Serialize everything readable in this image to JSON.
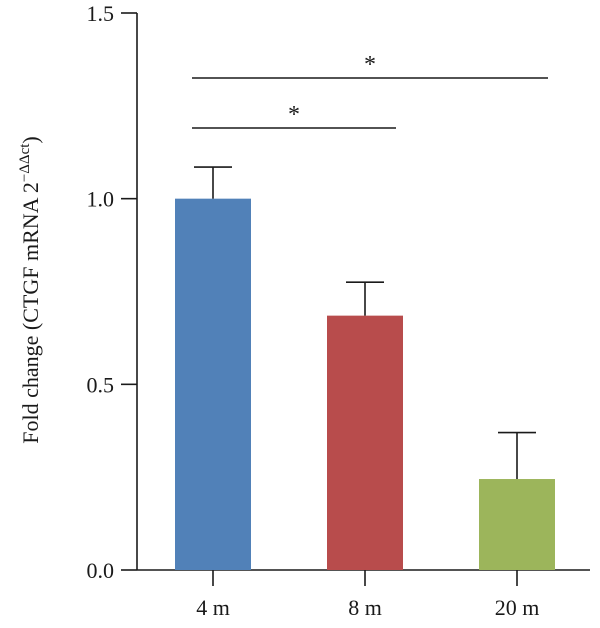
{
  "chart_data": {
    "type": "bar",
    "categories": [
      "4 m",
      "8 m",
      "20 m"
    ],
    "values": [
      1.0,
      0.685,
      0.245
    ],
    "errors": [
      0.085,
      0.09,
      0.125
    ],
    "colors": [
      "#5181b8",
      "#b84c4c",
      "#9cb55b"
    ],
    "title": "",
    "xlabel": "",
    "ylabel": "Fold change (CTGF mRNA 2",
    "ylabel_superscript": "−ΔΔct",
    "ylabel_suffix": ")",
    "ylim": [
      0,
      1.5
    ],
    "yticks": [
      0.0,
      0.5,
      1.0,
      1.5
    ],
    "ytick_labels": [
      "0.0",
      "0.5",
      "1.0",
      "1.5"
    ],
    "grid": false,
    "significance": [
      {
        "from": "4 m",
        "to": "20 m",
        "label": "*"
      },
      {
        "from": "4 m",
        "to": "8 m",
        "label": "*"
      }
    ]
  }
}
